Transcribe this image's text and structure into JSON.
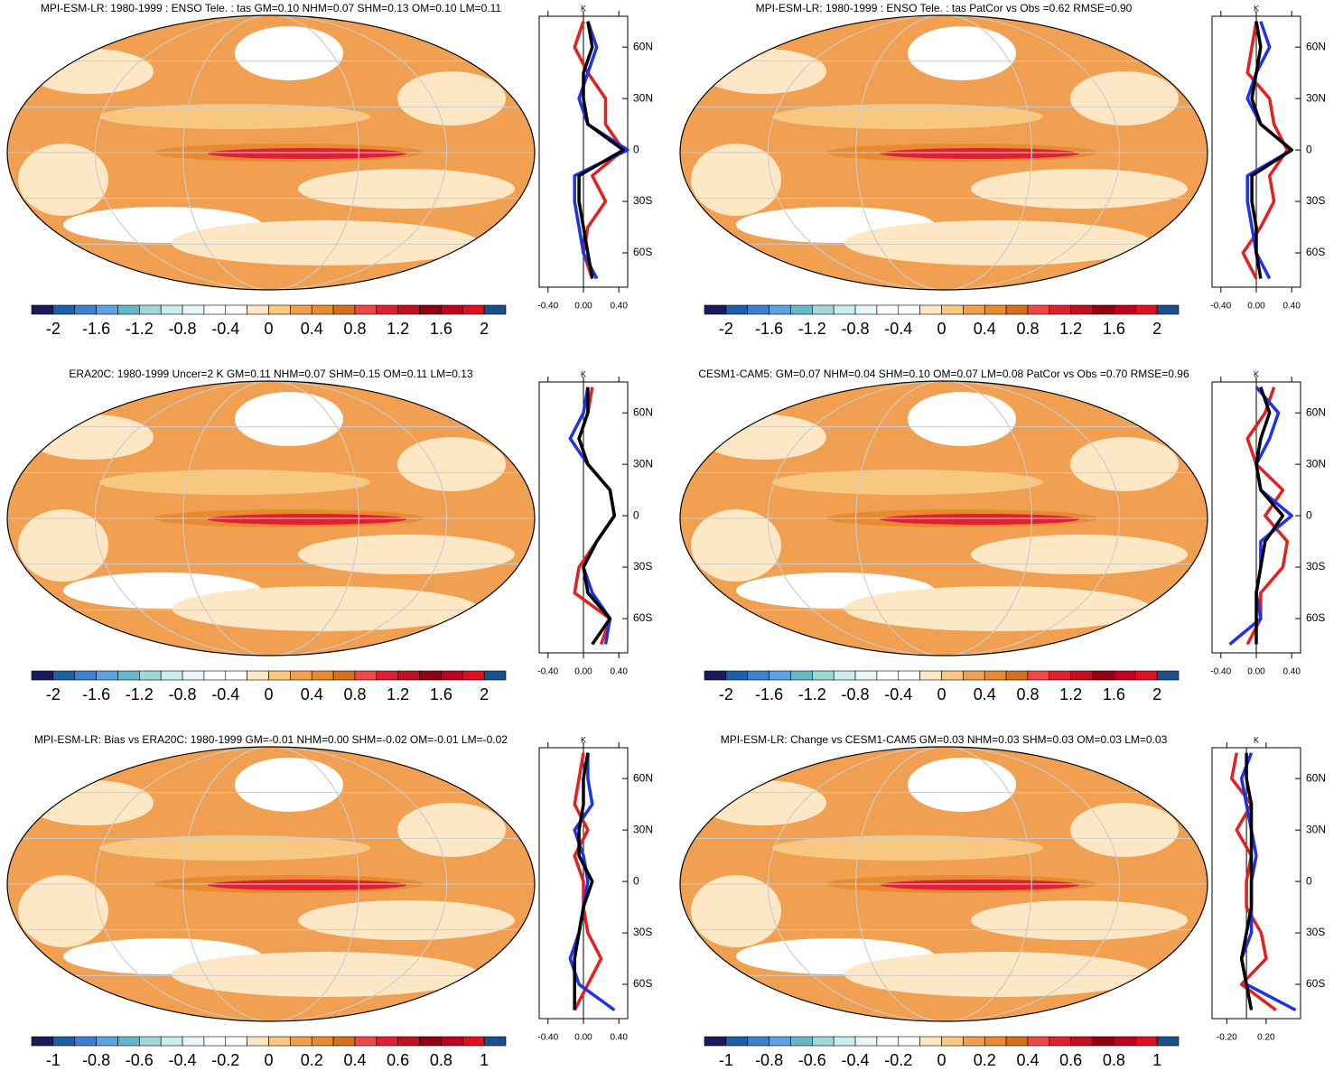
{
  "colorbar_colors": [
    "#1b1b5c",
    "#1f5fa8",
    "#3f7fcf",
    "#5fa0e0",
    "#66b8c8",
    "#a0d8d8",
    "#c8ecf0",
    "#e8f6f8",
    "#ffffff",
    "#ffffff",
    "#fde7c4",
    "#f8c880",
    "#f0a050",
    "#e88a30",
    "#d4701c",
    "#f04848",
    "#e02030",
    "#c01020",
    "#900010",
    "#c00020",
    "#e01020",
    "#1a4f8a"
  ],
  "panels": [
    {
      "title": "MPI-ESM-LR: 1980-1999 : ENSO Tele. : tas GM=0.10 NHM=0.07 SHM=0.13 OM=0.10 LM=0.11",
      "colorbar_labels": [
        -2,
        -1.6,
        -1.2,
        -0.8,
        -0.4,
        0,
        0.4,
        0.8,
        1.2,
        1.6,
        2
      ],
      "profile": {
        "unit": "K",
        "xlim": [
          -0.5,
          0.5
        ],
        "ylim": [
          -80,
          78
        ],
        "xticks": [
          {
            "value": -0.4,
            "label": "-0.40"
          },
          {
            "value": 0,
            "label": "0.00"
          },
          {
            "value": 0.4,
            "label": "0.40"
          }
        ],
        "yticks": [
          {
            "value": -60,
            "label": "60S"
          },
          {
            "value": -30,
            "label": "30S"
          },
          0,
          {
            "value": 30,
            "label": "30N"
          },
          {
            "value": 60,
            "label": "60N"
          }
        ],
        "lat": [
          -75,
          -60,
          -45,
          -30,
          -15,
          0,
          15,
          30,
          45,
          60,
          75
        ],
        "series": [
          {
            "color": "#e61e1e",
            "values": [
              0.1,
              0.0,
              0.05,
              0.25,
              0.1,
              0.45,
              0.25,
              0.25,
              0.05,
              -0.1,
              0.0
            ]
          },
          {
            "color": "#1e32e6",
            "values": [
              0.15,
              0.0,
              -0.05,
              -0.1,
              -0.1,
              0.5,
              0.05,
              -0.05,
              0.05,
              0.15,
              0.05
            ]
          },
          {
            "color": "#000000",
            "values": [
              0.1,
              0.05,
              0.0,
              -0.05,
              -0.05,
              0.45,
              0.05,
              0.0,
              0.0,
              0.1,
              0.05
            ]
          }
        ]
      }
    },
    {
      "title": "MPI-ESM-LR: 1980-1999 : ENSO Tele. : tas PatCor vs Obs =0.62 RMSE=0.90",
      "colorbar_labels": [
        -2,
        -1.6,
        -1.2,
        -0.8,
        -0.4,
        0,
        0.4,
        0.8,
        1.2,
        1.6,
        2
      ],
      "profile": {
        "unit": "K",
        "xlim": [
          -0.5,
          0.5
        ],
        "ylim": [
          -80,
          78
        ],
        "xticks": [
          {
            "value": -0.4,
            "label": "-0.40"
          },
          {
            "value": 0,
            "label": "0.00"
          },
          {
            "value": 0.4,
            "label": "0.40"
          }
        ],
        "yticks": [
          {
            "value": -60,
            "label": "60S"
          },
          {
            "value": -30,
            "label": "30S"
          },
          0,
          {
            "value": 30,
            "label": "30N"
          },
          {
            "value": 60,
            "label": "60N"
          }
        ],
        "lat": [
          -75,
          -60,
          -45,
          -30,
          -15,
          0,
          15,
          30,
          45,
          60,
          75
        ],
        "series": [
          {
            "color": "#e61e1e",
            "values": [
              0.0,
              -0.15,
              0.05,
              0.2,
              0.15,
              0.35,
              0.2,
              0.15,
              -0.1,
              -0.05,
              0.0
            ]
          },
          {
            "color": "#1e32e6",
            "values": [
              0.15,
              0.0,
              -0.05,
              -0.1,
              -0.1,
              0.4,
              0.05,
              -0.1,
              0.0,
              0.15,
              0.05
            ]
          },
          {
            "color": "#000000",
            "values": [
              0.05,
              0.0,
              0.0,
              -0.05,
              -0.05,
              0.4,
              0.05,
              -0.05,
              0.0,
              0.05,
              0.0
            ]
          }
        ]
      }
    },
    {
      "title": "ERA20C: 1980-1999 Uncer=2 K GM=0.11 NHM=0.07 SHM=0.15 OM=0.11 LM=0.13",
      "colorbar_labels": [
        -2,
        -1.6,
        -1.2,
        -0.8,
        -0.4,
        0,
        0.4,
        0.8,
        1.2,
        1.6,
        2
      ],
      "profile": {
        "unit": "K",
        "xlim": [
          -0.5,
          0.5
        ],
        "ylim": [
          -80,
          78
        ],
        "xticks": [
          {
            "value": -0.4,
            "label": "-0.40"
          },
          {
            "value": 0,
            "label": "0.00"
          },
          {
            "value": 0.4,
            "label": "0.40"
          }
        ],
        "yticks": [
          {
            "value": -60,
            "label": "60S"
          },
          {
            "value": -30,
            "label": "30S"
          },
          0,
          {
            "value": 30,
            "label": "30N"
          },
          {
            "value": 60,
            "label": "60N"
          }
        ],
        "lat": [
          -75,
          -60,
          -45,
          -30,
          -15,
          0,
          15,
          30,
          45,
          60,
          75
        ],
        "series": [
          {
            "color": "#e61e1e",
            "values": [
              0.2,
              0.3,
              -0.1,
              -0.05,
              0.15,
              0.35,
              0.3,
              0.05,
              -0.05,
              0.05,
              0.1
            ]
          },
          {
            "color": "#1e32e6",
            "values": [
              0.25,
              0.3,
              0.1,
              0.0,
              0.15,
              0.35,
              0.3,
              0.05,
              -0.15,
              0.0,
              0.05
            ]
          },
          {
            "color": "#000000",
            "values": [
              0.1,
              0.3,
              0.05,
              0.0,
              0.15,
              0.35,
              0.3,
              0.05,
              -0.05,
              0.05,
              0.05
            ]
          }
        ]
      }
    },
    {
      "title": "CESM1-CAM5: GM=0.07 NHM=0.04 SHM=0.10 OM=0.07 LM=0.08 PatCor vs Obs =0.70 RMSE=0.96",
      "colorbar_labels": [
        -2,
        -1.6,
        -1.2,
        -0.8,
        -0.4,
        0,
        0.4,
        0.8,
        1.2,
        1.6,
        2
      ],
      "profile": {
        "unit": "K",
        "xlim": [
          -0.5,
          0.5
        ],
        "ylim": [
          -80,
          78
        ],
        "xticks": [
          {
            "value": -0.4,
            "label": "-0.40"
          },
          {
            "value": 0,
            "label": "0.00"
          },
          {
            "value": 0.4,
            "label": "0.40"
          }
        ],
        "yticks": [
          {
            "value": -60,
            "label": "60S"
          },
          {
            "value": -30,
            "label": "30S"
          },
          0,
          {
            "value": 30,
            "label": "30N"
          },
          {
            "value": 60,
            "label": "60N"
          }
        ],
        "lat": [
          -75,
          -60,
          -45,
          -30,
          -15,
          0,
          15,
          30,
          45,
          60,
          75
        ],
        "series": [
          {
            "color": "#e61e1e",
            "values": [
              -0.1,
              0.05,
              0.05,
              0.3,
              0.35,
              0.1,
              0.3,
              0.0,
              -0.1,
              0.1,
              0.2
            ]
          },
          {
            "color": "#1e32e6",
            "values": [
              -0.3,
              0.05,
              0.0,
              0.05,
              0.05,
              0.4,
              0.05,
              0.0,
              0.15,
              0.25,
              0.0
            ]
          },
          {
            "color": "#000000",
            "values": [
              0.0,
              0.0,
              0.0,
              0.05,
              0.1,
              0.3,
              0.05,
              0.0,
              0.05,
              0.15,
              0.05
            ]
          }
        ]
      }
    },
    {
      "title": "MPI-ESM-LR: Bias vs ERA20C: 1980-1999 GM=-0.01 NHM=0.00 SHM=-0.02 OM=-0.01 LM=-0.02",
      "colorbar_labels": [
        -1,
        -0.8,
        -0.6,
        -0.4,
        -0.2,
        0,
        0.2,
        0.4,
        0.6,
        0.8,
        1
      ],
      "profile": {
        "unit": "K",
        "xlim": [
          -0.5,
          0.5
        ],
        "ylim": [
          -80,
          78
        ],
        "xticks": [
          {
            "value": -0.4,
            "label": "-0.40"
          },
          {
            "value": 0,
            "label": "0.00"
          },
          {
            "value": 0.4,
            "label": "0.40"
          }
        ],
        "yticks": [
          {
            "value": -60,
            "label": "60S"
          },
          {
            "value": -30,
            "label": "30S"
          },
          0,
          {
            "value": 30,
            "label": "30N"
          },
          {
            "value": 60,
            "label": "60N"
          }
        ],
        "lat": [
          -75,
          -60,
          -45,
          -30,
          -15,
          0,
          15,
          30,
          45,
          60,
          75
        ],
        "series": [
          {
            "color": "#e61e1e",
            "values": [
              -0.1,
              0.05,
              0.2,
              0.05,
              0.0,
              0.0,
              -0.1,
              0.05,
              -0.1,
              -0.05,
              0.0
            ]
          },
          {
            "color": "#1e32e6",
            "values": [
              0.35,
              -0.05,
              -0.15,
              -0.05,
              0.0,
              0.05,
              0.0,
              -0.1,
              0.1,
              0.05,
              0.05
            ]
          },
          {
            "color": "#000000",
            "values": [
              -0.1,
              -0.1,
              -0.1,
              -0.05,
              0.0,
              0.1,
              -0.05,
              -0.05,
              0.0,
              0.0,
              0.05
            ]
          }
        ]
      }
    },
    {
      "title": "MPI-ESM-LR: Change vs CESM1-CAM5 GM=0.03 NHM=0.03 SHM=0.03 OM=0.03 LM=0.03",
      "colorbar_labels": [
        -1,
        -0.8,
        -0.6,
        -0.4,
        -0.2,
        0,
        0.2,
        0.4,
        0.6,
        0.8,
        1
      ],
      "profile": {
        "unit": "K",
        "xlim": [
          -0.35,
          0.55
        ],
        "ylim": [
          -80,
          78
        ],
        "xticks": [
          {
            "value": -0.2,
            "label": "-0.20"
          },
          {
            "value": 0.2,
            "label": "0.20"
          }
        ],
        "yticks": [
          {
            "value": -60,
            "label": "60S"
          },
          {
            "value": -30,
            "label": "30S"
          },
          0,
          {
            "value": 30,
            "label": "30N"
          },
          {
            "value": 60,
            "label": "60N"
          }
        ],
        "lat": [
          -75,
          -60,
          -45,
          -30,
          -15,
          0,
          15,
          30,
          45,
          60,
          75
        ],
        "series": [
          {
            "color": "#e61e1e",
            "values": [
              0.3,
              -0.05,
              0.2,
              0.15,
              0.0,
              0.0,
              0.05,
              -0.1,
              0.05,
              -0.15,
              -0.1
            ]
          },
          {
            "color": "#1e32e6",
            "values": [
              0.5,
              0.0,
              -0.05,
              0.05,
              0.05,
              0.05,
              0.1,
              0.05,
              0.0,
              -0.05,
              0.05
            ]
          },
          {
            "color": "#000000",
            "values": [
              0.05,
              0.0,
              -0.05,
              0.0,
              0.05,
              0.05,
              0.05,
              0.05,
              0.05,
              0.0,
              0.0
            ]
          }
        ]
      }
    }
  ]
}
